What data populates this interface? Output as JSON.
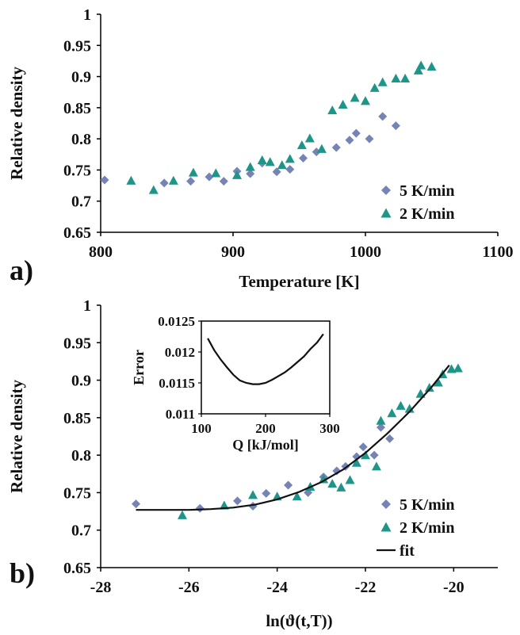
{
  "colors": {
    "series_5": "#7584b5",
    "series_2": "#1f958a",
    "fit": "#111111",
    "axis": "#000000"
  },
  "chart_data": [
    {
      "panel": "a)",
      "type": "scatter",
      "xlabel": "Temperature  [K]",
      "ylabel": "Relative density",
      "xlim": [
        800,
        1100
      ],
      "ylim": [
        0.65,
        1
      ],
      "xticks": [
        "800",
        "900",
        "1000",
        "1100"
      ],
      "yticks": [
        "0.65",
        "0.7",
        "0.75",
        "0.8",
        "0.85",
        "0.9",
        "0.95",
        "1"
      ],
      "grid": false,
      "legend_position": "bottom-right",
      "series": [
        {
          "name": "5 K/min",
          "marker": "diamond",
          "x": [
            803,
            848,
            868,
            882,
            893,
            903,
            913,
            922,
            933,
            943,
            953,
            963,
            978,
            988,
            993,
            1003,
            1013,
            1023
          ],
          "y": [
            0.734,
            0.729,
            0.732,
            0.739,
            0.732,
            0.748,
            0.744,
            0.761,
            0.747,
            0.751,
            0.769,
            0.779,
            0.786,
            0.798,
            0.809,
            0.8,
            0.836,
            0.821
          ]
        },
        {
          "name": "2 K/min",
          "marker": "triangle",
          "x": [
            823,
            840,
            855,
            870,
            887,
            903,
            913,
            922,
            928,
            937,
            943,
            952,
            958,
            967,
            975,
            983,
            992,
            1000,
            1007,
            1013,
            1023,
            1030,
            1040,
            1042,
            1050
          ],
          "y": [
            0.733,
            0.718,
            0.733,
            0.746,
            0.745,
            0.742,
            0.755,
            0.766,
            0.763,
            0.758,
            0.768,
            0.79,
            0.801,
            0.784,
            0.846,
            0.855,
            0.866,
            0.861,
            0.882,
            0.891,
            0.897,
            0.897,
            0.91,
            0.918,
            0.916
          ]
        }
      ]
    },
    {
      "panel": "b)",
      "type": "scatter",
      "xlabel": "ln(ϑ(t,T))",
      "ylabel": "Relative density",
      "xlim": [
        -28,
        -19
      ],
      "ylim": [
        0.65,
        1
      ],
      "xticks": [
        "-28",
        "-26",
        "-24",
        "-22",
        "-20"
      ],
      "yticks": [
        "0.65",
        "0.7",
        "0.75",
        "0.8",
        "0.85",
        "0.9",
        "0.95",
        "1"
      ],
      "grid": false,
      "legend_position": "bottom-right",
      "series": [
        {
          "name": "5 K/min",
          "marker": "diamond",
          "x": [
            -27.2,
            -25.75,
            -24.9,
            -24.55,
            -24.25,
            -23.75,
            -23.3,
            -22.95,
            -22.65,
            -22.45,
            -22.2,
            -22.05,
            -21.8,
            -21.65,
            -21.45
          ],
          "y": [
            0.735,
            0.729,
            0.739,
            0.732,
            0.749,
            0.76,
            0.75,
            0.771,
            0.779,
            0.785,
            0.798,
            0.811,
            0.8,
            0.837,
            0.822
          ]
        },
        {
          "name": "2 K/min",
          "marker": "triangle",
          "x": [
            -26.15,
            -25.2,
            -24.55,
            -24.0,
            -23.55,
            -23.25,
            -22.95,
            -22.75,
            -22.55,
            -22.35,
            -22.2,
            -22.0,
            -21.75,
            -21.65,
            -21.4,
            -21.2,
            -21.0,
            -20.75,
            -20.55,
            -20.35,
            -20.25,
            -20.05,
            -19.9
          ],
          "y": [
            0.72,
            0.733,
            0.747,
            0.745,
            0.745,
            0.758,
            0.768,
            0.762,
            0.757,
            0.767,
            0.79,
            0.8,
            0.785,
            0.846,
            0.856,
            0.866,
            0.862,
            0.882,
            0.89,
            0.897,
            0.908,
            0.915,
            0.916
          ]
        },
        {
          "name": "fit",
          "marker": "line",
          "x": [
            -27.2,
            -26.5,
            -26.0,
            -25.5,
            -25.0,
            -24.5,
            -24.0,
            -23.5,
            -23.0,
            -22.5,
            -22.0,
            -21.5,
            -21.0,
            -20.5,
            -20.1
          ],
          "y": [
            0.727,
            0.727,
            0.727,
            0.728,
            0.73,
            0.734,
            0.741,
            0.751,
            0.764,
            0.781,
            0.803,
            0.829,
            0.858,
            0.891,
            0.92
          ]
        }
      ],
      "inset": {
        "type": "line",
        "xlabel": "Q [kJ/mol]",
        "ylabel": "Error",
        "xlim": [
          100,
          300
        ],
        "ylim": [
          0.011,
          0.0125
        ],
        "xticks": [
          "100",
          "200",
          "300"
        ],
        "yticks": [
          "0.011",
          "0.0115",
          "0.012",
          "0.0125"
        ],
        "x": [
          110,
          120,
          130,
          140,
          150,
          160,
          170,
          180,
          190,
          200,
          210,
          220,
          230,
          240,
          250,
          260,
          270,
          280,
          290
        ],
        "y": [
          0.01222,
          0.01203,
          0.01188,
          0.01175,
          0.01163,
          0.01154,
          0.0115,
          0.01148,
          0.01148,
          0.0115,
          0.01155,
          0.01161,
          0.01167,
          0.01175,
          0.01184,
          0.01193,
          0.01205,
          0.01215,
          0.01229
        ]
      }
    }
  ]
}
